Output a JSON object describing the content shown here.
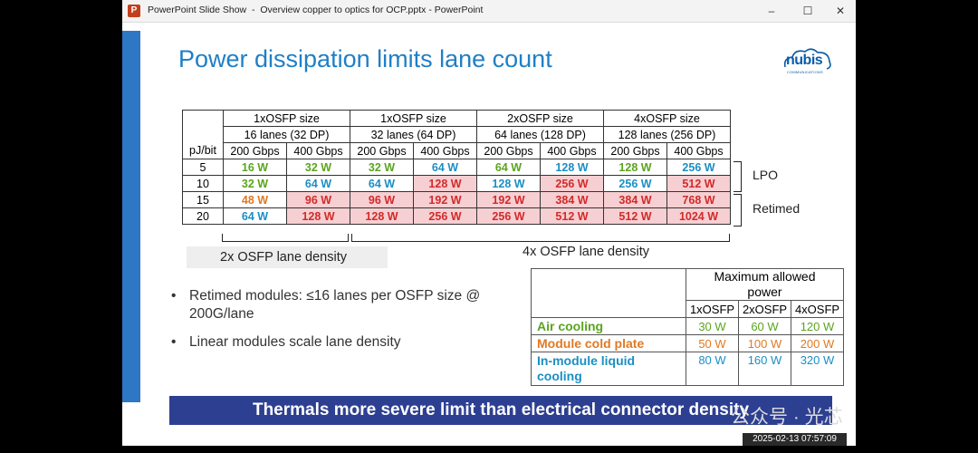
{
  "window": {
    "app_label": "PowerPoint Slide Show",
    "separator": "-",
    "title": "Overview copper to optics for OCP.pptx - PowerPoint",
    "app_icon_letter": "P",
    "controls": {
      "minimize": "–",
      "maximize": "☐",
      "close": "✕"
    }
  },
  "slide": {
    "title": "Power dissipation limits lane count",
    "logo_text": "nubis",
    "logo_sub": "COMMUNICATIONS",
    "table": {
      "row_header": "pJ/bit",
      "groups": [
        {
          "size": "1xOSFP size",
          "lanes": "16 lanes (32 DP)"
        },
        {
          "size": "1xOSFP size",
          "lanes": "32 lanes (64 DP)"
        },
        {
          "size": "2xOSFP size",
          "lanes": "64 lanes (128 DP)"
        },
        {
          "size": "4xOSFP size",
          "lanes": "128 lanes (256 DP)"
        }
      ],
      "speeds": [
        "200 Gbps",
        "400 Gbps",
        "200 Gbps",
        "400 Gbps",
        "200 Gbps",
        "400 Gbps",
        "200 Gbps",
        "400 Gbps"
      ],
      "rows": [
        {
          "pj": "5",
          "cells": [
            "16 W",
            "32 W",
            "32 W",
            "64 W",
            "64 W",
            "128 W",
            "128 W",
            "256 W"
          ]
        },
        {
          "pj": "10",
          "cells": [
            "32 W",
            "64 W",
            "64 W",
            "128 W",
            "128 W",
            "256 W",
            "256 W",
            "512 W"
          ]
        },
        {
          "pj": "15",
          "cells": [
            "48 W",
            "96 W",
            "96 W",
            "192 W",
            "192 W",
            "384 W",
            "384 W",
            "768 W"
          ]
        },
        {
          "pj": "20",
          "cells": [
            "64 W",
            "128 W",
            "128 W",
            "256 W",
            "256 W",
            "512 W",
            "512 W",
            "1024 W"
          ]
        }
      ]
    },
    "side_labels": {
      "lpo": "LPO",
      "retimed": "Retimed"
    },
    "density_labels": {
      "left": "2x OSFP lane density",
      "right": "4x OSFP lane density"
    },
    "bullets": [
      {
        "line1": "Retimed modules: ≤16 lanes per OSFP size @",
        "line2": "200G/lane"
      },
      {
        "line1": "Linear modules scale lane density",
        "line2": ""
      }
    ],
    "cooling_table": {
      "header_line1": "Maximum allowed",
      "header_line2": "power",
      "columns": [
        "1xOSFP",
        "2xOSFP",
        "4xOSFP"
      ],
      "rows": [
        {
          "label_line1": "Air cooling",
          "label_line2": "",
          "values": [
            "30 W",
            "60 W",
            "120 W"
          ]
        },
        {
          "label_line1": "Module cold plate",
          "label_line2": "",
          "values": [
            "50 W",
            "100 W",
            "200 W"
          ]
        },
        {
          "label_line1": "In-module liquid",
          "label_line2": "cooling",
          "values": [
            "80 W",
            "160 W",
            "320 W"
          ]
        }
      ]
    },
    "banner": "Thermals  more severe limit than electrical connector density"
  },
  "overlay": {
    "watermark": "公众号 · 光芯",
    "timestamp": "2025-02-13 07:57:09"
  },
  "colors": {
    "title_blue": "#1f7fc6",
    "green": "#5aa51e",
    "blue": "#1a8fc4",
    "orange": "#e07a22",
    "red": "#d22a2a",
    "pink_fill": "#f6cfd2",
    "banner_navy": "#2d3f91"
  }
}
